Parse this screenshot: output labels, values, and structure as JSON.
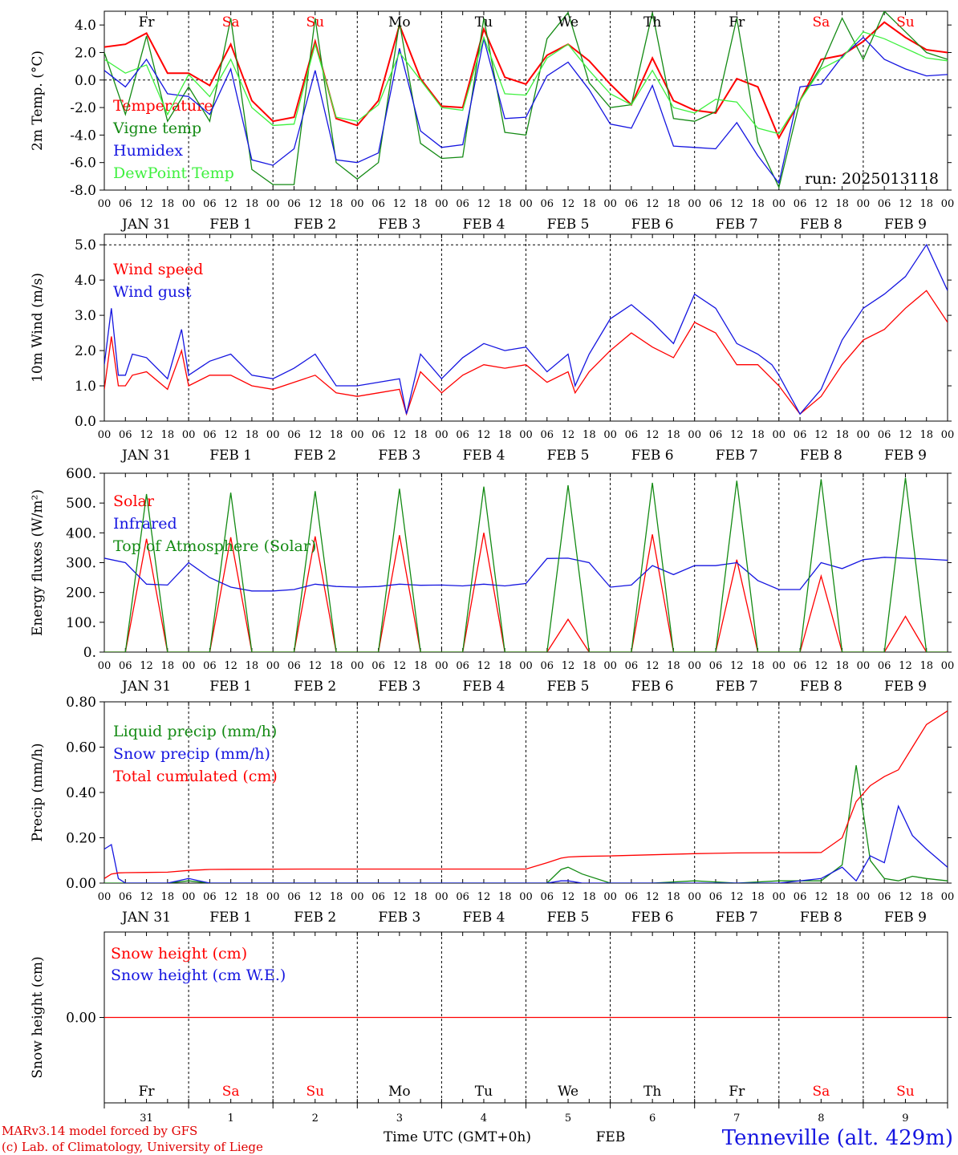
{
  "header": {
    "run_label": "run: 2025013118"
  },
  "footer": {
    "model_line1": "MARv3.14 model forced by GFS",
    "model_line2": "(c) Lab. of Climatology, University of Liege",
    "time_label": "Time UTC (GMT+0h)",
    "month_label": "FEB",
    "station": "Tenneville (alt. 429m)"
  },
  "colors": {
    "red": "#ff0000",
    "green": "#138a13",
    "blue": "#1515e0",
    "lightgreen": "#3ef03e",
    "weekday": "#000000",
    "weekend": "#ff0000"
  },
  "days": [
    {
      "weekday": "Fr",
      "weekend": false,
      "date_label": "JAN 31",
      "day_num": "31"
    },
    {
      "weekday": "Sa",
      "weekend": true,
      "date_label": "FEB  1",
      "day_num": "1"
    },
    {
      "weekday": "Su",
      "weekend": true,
      "date_label": "FEB  2",
      "day_num": "2"
    },
    {
      "weekday": "Mo",
      "weekend": false,
      "date_label": "FEB  3",
      "day_num": "3"
    },
    {
      "weekday": "Tu",
      "weekend": false,
      "date_label": "FEB  4",
      "day_num": "4"
    },
    {
      "weekday": "We",
      "weekend": false,
      "date_label": "FEB  5",
      "day_num": "5"
    },
    {
      "weekday": "Th",
      "weekend": false,
      "date_label": "FEB  6",
      "day_num": "6"
    },
    {
      "weekday": "Fr",
      "weekend": false,
      "date_label": "FEB  7",
      "day_num": "7"
    },
    {
      "weekday": "Sa",
      "weekend": true,
      "date_label": "FEB  8",
      "day_num": "8"
    },
    {
      "weekday": "Su",
      "weekend": true,
      "date_label": "FEB  9",
      "day_num": "9"
    }
  ],
  "hour_ticks": [
    "00",
    "06",
    "12",
    "18"
  ],
  "chart_data": [
    {
      "type": "line",
      "ylabel": "2m Temp. (°C)",
      "ylim": [
        -8,
        5
      ],
      "yticks": [
        4,
        2,
        0,
        -2,
        -4,
        -6,
        -8
      ],
      "ytick_labels": [
        "4.0",
        "2.0",
        "0.0",
        "-2.0",
        "-4.0",
        "-6.0",
        "-8.0"
      ],
      "dashed_y": [
        0
      ],
      "x_hours_from_jan31_00": [
        0,
        6,
        12,
        18,
        24,
        30,
        36,
        42,
        48,
        54,
        60,
        66,
        72,
        78,
        84,
        90,
        96,
        102,
        108,
        114,
        120,
        126,
        132,
        138,
        144,
        150,
        156,
        162,
        168,
        174,
        180,
        186,
        192,
        198,
        204,
        210,
        216,
        222,
        228,
        234,
        240
      ],
      "series": [
        {
          "name": "Temperature",
          "color": "#ff0000",
          "values": [
            2.4,
            2.6,
            3.4,
            0.5,
            0.5,
            -0.4,
            2.6,
            -1.5,
            -3.0,
            -2.7,
            2.8,
            -2.8,
            -3.3,
            -1.5,
            4.0,
            0.1,
            -1.9,
            -2.0,
            3.7,
            0.2,
            -0.3,
            1.8,
            2.6,
            1.4,
            -0.3,
            -1.8,
            1.6,
            -1.5,
            -2.2,
            -2.4,
            0.1,
            -0.5,
            -4.2,
            -1.5,
            1.5,
            1.8,
            2.8,
            4.2,
            3.1,
            2.2,
            2.0
          ]
        },
        {
          "name": "Vigne temp",
          "color": "#138a13",
          "values": [
            2.0,
            -2.5,
            3.2,
            -3.0,
            -0.5,
            -3.0,
            4.5,
            -6.5,
            -7.6,
            -7.6,
            4.5,
            -6.0,
            -7.2,
            -6.0,
            4.2,
            -4.6,
            -5.7,
            -5.6,
            4.5,
            -3.8,
            -4.0,
            3.0,
            4.9,
            -0.2,
            -2.0,
            -1.8,
            4.9,
            -2.8,
            -3.0,
            -2.3,
            4.5,
            -4.5,
            -7.8,
            -1.5,
            1.0,
            4.5,
            1.5,
            5.0,
            3.5,
            2.0,
            1.5
          ]
        },
        {
          "name": "Humidex",
          "color": "#1515e0",
          "values": [
            0.7,
            -0.5,
            1.5,
            -1.0,
            -1.2,
            -2.5,
            0.8,
            -5.8,
            -6.2,
            -5.0,
            0.7,
            -5.8,
            -6.0,
            -5.3,
            2.3,
            -3.7,
            -4.9,
            -4.7,
            3.0,
            -2.8,
            -2.7,
            0.3,
            1.3,
            -0.7,
            -3.2,
            -3.5,
            -0.4,
            -4.8,
            -4.9,
            -5.0,
            -3.1,
            -5.5,
            -7.5,
            -0.5,
            -0.3,
            1.7,
            3.1,
            1.5,
            0.8,
            0.3,
            0.4
          ]
        },
        {
          "name": "DewPoint Temp",
          "color": "#3ef03e",
          "values": [
            1.5,
            0.5,
            1.1,
            -2.5,
            0.4,
            -1.2,
            1.5,
            -2.0,
            -3.3,
            -3.2,
            2.6,
            -2.7,
            -3.0,
            -1.8,
            2.0,
            0.0,
            -2.0,
            -2.2,
            3.1,
            -1.0,
            -1.1,
            1.6,
            2.6,
            0.7,
            -1.0,
            -1.8,
            0.7,
            -2.0,
            -2.4,
            -1.4,
            -1.6,
            -3.5,
            -3.9,
            -1.5,
            0.8,
            1.6,
            3.5,
            3.0,
            2.3,
            1.6,
            1.4
          ]
        }
      ]
    },
    {
      "type": "line",
      "ylabel": "10m Wind (m/s)",
      "ylim": [
        0,
        5.3
      ],
      "yticks": [
        0,
        1,
        2,
        3,
        4,
        5
      ],
      "ytick_labels": [
        "0.0",
        "1.0",
        "2.0",
        "3.0",
        "4.0",
        "5.0"
      ],
      "dashed_y": [
        5
      ],
      "x_hours_from_jan31_00": [
        0,
        2,
        4,
        6,
        8,
        12,
        18,
        22,
        24,
        30,
        36,
        42,
        48,
        54,
        60,
        66,
        72,
        78,
        84,
        86,
        90,
        96,
        102,
        108,
        114,
        120,
        126,
        132,
        134,
        138,
        144,
        150,
        156,
        162,
        168,
        174,
        180,
        186,
        190,
        192,
        198,
        204,
        210,
        216,
        222,
        228,
        234,
        240
      ],
      "series": [
        {
          "name": "Wind speed",
          "color": "#ff0000",
          "values": [
            0.9,
            2.4,
            1.0,
            1.0,
            1.3,
            1.4,
            0.9,
            2.0,
            1.0,
            1.3,
            1.3,
            1.0,
            0.9,
            1.1,
            1.3,
            0.8,
            0.7,
            0.8,
            0.9,
            0.2,
            1.4,
            0.8,
            1.3,
            1.6,
            1.5,
            1.6,
            1.1,
            1.4,
            0.8,
            1.4,
            2.0,
            2.5,
            2.1,
            1.8,
            2.8,
            2.5,
            1.6,
            1.6,
            1.2,
            1.0,
            0.2,
            0.7,
            1.6,
            2.3,
            2.6,
            3.2,
            3.7,
            2.8
          ]
        },
        {
          "name": "Wind gust",
          "color": "#1515e0",
          "values": [
            1.6,
            3.2,
            1.3,
            1.3,
            1.9,
            1.8,
            1.2,
            2.6,
            1.3,
            1.7,
            1.9,
            1.3,
            1.2,
            1.5,
            1.9,
            1.0,
            1.0,
            1.1,
            1.2,
            0.2,
            1.9,
            1.2,
            1.8,
            2.2,
            2.0,
            2.1,
            1.4,
            1.9,
            1.0,
            1.9,
            2.9,
            3.3,
            2.8,
            2.2,
            3.6,
            3.2,
            2.2,
            1.9,
            1.6,
            1.3,
            0.2,
            0.9,
            2.3,
            3.2,
            3.6,
            4.1,
            5.0,
            3.7
          ]
        }
      ]
    },
    {
      "type": "line",
      "ylabel": "Energy fluxes (W/m²)",
      "ylim": [
        0,
        600
      ],
      "yticks": [
        0,
        100,
        200,
        300,
        400,
        500,
        600
      ],
      "ytick_labels": [
        "0.",
        "100.",
        "200.",
        "300.",
        "400.",
        "500.",
        "600."
      ],
      "x_hours_from_jan31_00": [
        0,
        6,
        12,
        18,
        24,
        30,
        36,
        42,
        48,
        54,
        60,
        66,
        72,
        78,
        84,
        90,
        96,
        102,
        108,
        114,
        120,
        126,
        132,
        138,
        144,
        150,
        156,
        162,
        168,
        174,
        180,
        186,
        192,
        198,
        204,
        210,
        216,
        222,
        228,
        234,
        240
      ],
      "series": [
        {
          "name": "Solar",
          "color": "#ff0000",
          "values": [
            0,
            0,
            380,
            0,
            0,
            0,
            385,
            0,
            0,
            0,
            388,
            0,
            0,
            0,
            392,
            0,
            0,
            0,
            400,
            0,
            0,
            0,
            110,
            0,
            0,
            0,
            395,
            0,
            0,
            0,
            310,
            0,
            0,
            0,
            255,
            0,
            0,
            0,
            120,
            0,
            0
          ]
        },
        {
          "name": "Infrared",
          "color": "#1515e0",
          "values": [
            315,
            300,
            228,
            225,
            300,
            250,
            218,
            205,
            205,
            210,
            228,
            220,
            218,
            220,
            228,
            224,
            225,
            222,
            228,
            222,
            230,
            314,
            315,
            300,
            218,
            225,
            290,
            260,
            290,
            290,
            300,
            240,
            210,
            210,
            300,
            280,
            310,
            318,
            315,
            312,
            308
          ]
        },
        {
          "name": "Top of Atmosphere (Solar)",
          "color": "#138a13",
          "values": [
            0,
            0,
            530,
            0,
            0,
            0,
            535,
            0,
            0,
            0,
            540,
            0,
            0,
            0,
            548,
            0,
            0,
            0,
            555,
            0,
            0,
            0,
            560,
            0,
            0,
            0,
            568,
            0,
            0,
            0,
            575,
            0,
            0,
            0,
            580,
            0,
            0,
            0,
            585,
            0,
            0
          ]
        }
      ]
    },
    {
      "type": "line",
      "ylabel": "Precip (mm/h)",
      "ylim": [
        0,
        0.8
      ],
      "yticks": [
        0,
        0.2,
        0.4,
        0.6,
        0.8
      ],
      "ytick_labels": [
        "0.00",
        "0.20",
        "0.40",
        "0.60",
        "0.80"
      ],
      "x_hours_from_jan31_00": [
        0,
        2,
        4,
        6,
        12,
        18,
        24,
        30,
        36,
        60,
        84,
        108,
        120,
        126,
        130,
        132,
        136,
        144,
        156,
        168,
        180,
        192,
        204,
        210,
        214,
        218,
        222,
        226,
        230,
        234,
        240
      ],
      "series": [
        {
          "name": "Liquid precip (mm/h)",
          "color": "#138a13",
          "values": [
            0,
            0,
            0,
            0,
            0,
            0,
            0.01,
            0,
            0,
            0,
            0,
            0,
            0,
            0,
            0.06,
            0.07,
            0.04,
            0,
            0,
            0.01,
            0,
            0.01,
            0.01,
            0.08,
            0.52,
            0.1,
            0.02,
            0.01,
            0.03,
            0.02,
            0.01
          ]
        },
        {
          "name": "Snow precip (mm/h)",
          "color": "#1515e0",
          "values": [
            0.15,
            0.17,
            0.02,
            0,
            0,
            0,
            0.02,
            0,
            0,
            0,
            0,
            0,
            0,
            0,
            0.01,
            0.01,
            0,
            0,
            0,
            0,
            0,
            0,
            0.02,
            0.07,
            0.01,
            0.12,
            0.09,
            0.34,
            0.21,
            0.15,
            0.07
          ]
        },
        {
          "name": "Total cumulated (cm)",
          "color": "#ff0000",
          "values": [
            0.02,
            0.04,
            0.045,
            0.046,
            0.047,
            0.048,
            0.056,
            0.06,
            0.061,
            0.062,
            0.062,
            0.062,
            0.062,
            0.09,
            0.11,
            0.115,
            0.118,
            0.12,
            0.125,
            0.13,
            0.133,
            0.134,
            0.135,
            0.2,
            0.36,
            0.43,
            0.47,
            0.5,
            0.6,
            0.7,
            0.76
          ]
        }
      ]
    },
    {
      "type": "line",
      "ylabel": "Snow height (cm)",
      "ylim": [
        -1,
        1
      ],
      "yticks": [
        0
      ],
      "ytick_labels": [
        "0.00"
      ],
      "x_hours_from_jan31_00": [
        0,
        240
      ],
      "series": [
        {
          "name": "Snow height (cm)",
          "color": "#ff0000",
          "values": [
            0,
            0
          ]
        },
        {
          "name": "Snow height (cm W.E.)",
          "color": "#1515e0",
          "values": [
            null,
            null
          ]
        }
      ]
    }
  ]
}
